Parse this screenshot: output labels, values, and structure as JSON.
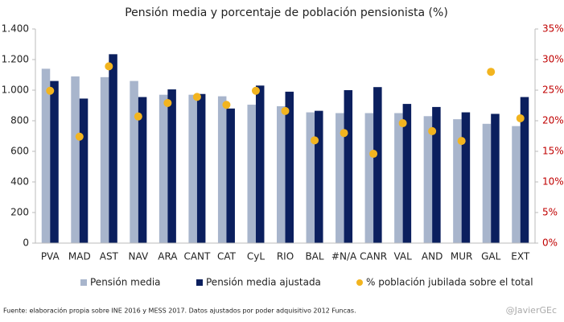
{
  "chart_data": {
    "type": "bar",
    "title": "Pensión media y porcentaje de población pensionista (%)",
    "categories": [
      "PVA",
      "MAD",
      "AST",
      "NAV",
      "ARA",
      "CANT",
      "CAT",
      "CyL",
      "RIO",
      "BAL",
      "#N/A",
      "CANR",
      "VAL",
      "AND",
      "MUR",
      "GAL",
      "EXT"
    ],
    "series": [
      {
        "name": "Pensión media",
        "type": "bar",
        "color": "#a8b5cc",
        "values": [
          1140,
          1090,
          1085,
          1060,
          970,
          970,
          960,
          905,
          895,
          855,
          850,
          850,
          850,
          830,
          810,
          780,
          765
        ]
      },
      {
        "name": "Pensión media ajustada",
        "type": "bar",
        "color": "#0b1f5e",
        "values": [
          1060,
          945,
          1235,
          955,
          1005,
          975,
          880,
          1030,
          990,
          865,
          1000,
          1020,
          910,
          890,
          855,
          845,
          955
        ]
      },
      {
        "name": "% población jubilada sobre el total",
        "type": "scatter",
        "axis": "y2",
        "color": "#f2b41f",
        "values": [
          24.9,
          17.4,
          28.9,
          20.7,
          22.9,
          23.9,
          22.6,
          24.9,
          21.6,
          16.8,
          18.0,
          14.6,
          19.6,
          18.3,
          16.7,
          28.0,
          20.4
        ]
      }
    ],
    "ylim": [
      0,
      1400
    ],
    "yticks": [
      0,
      200,
      400,
      600,
      800,
      {
        "value": 1000,
        "label": "1.000"
      },
      {
        "value": 1200,
        "label": "1.200"
      },
      {
        "value": 1400,
        "label": "1.400"
      }
    ],
    "y2lim": [
      0,
      35
    ],
    "y2ticks": [
      {
        "value": 0,
        "label": "0%"
      },
      {
        "value": 5,
        "label": "5%"
      },
      {
        "value": 10,
        "label": "10%"
      },
      {
        "value": 15,
        "label": "15%"
      },
      {
        "value": 20,
        "label": "20%"
      },
      {
        "value": 25,
        "label": "25%"
      },
      {
        "value": 30,
        "label": "30%"
      },
      {
        "value": 35,
        "label": "35%"
      }
    ],
    "y2color": "#c00000",
    "legend": "bottom",
    "source": "Fuente: elaboración  propia sobre INE 2016 y MESS 2017. Datos ajustados por poder adquisitivo 2012 Funcas.",
    "credit": "@JavierGEc"
  }
}
